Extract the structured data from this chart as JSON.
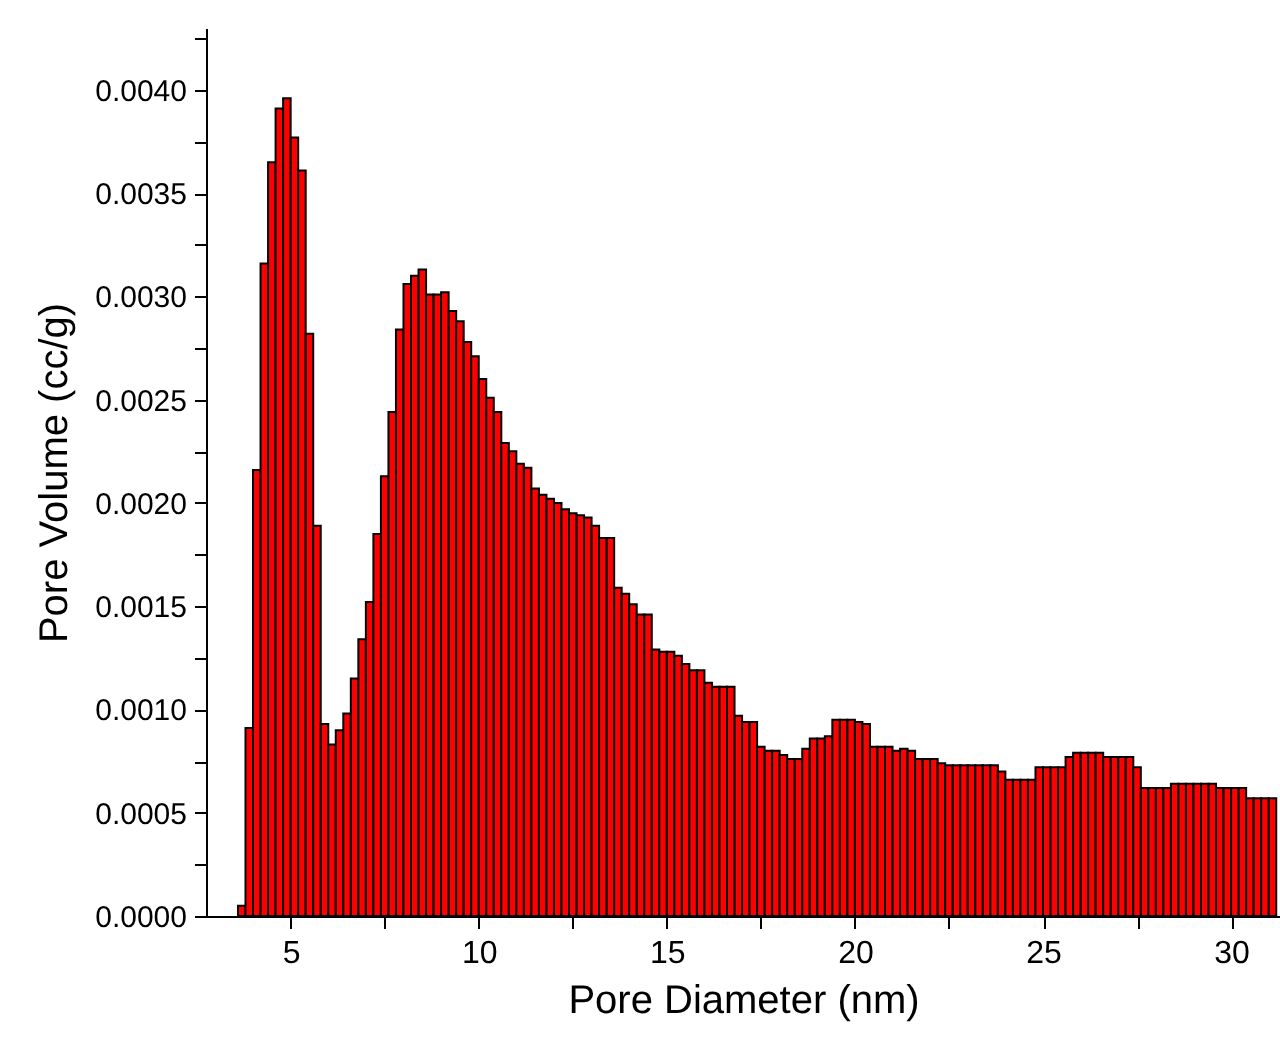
{
  "chart_data": {
    "type": "histogram",
    "xlabel": "Pore Diameter (nm)",
    "ylabel": "Pore Volume (cc/g)",
    "bins": [
      3.6,
      3.8,
      4.0,
      4.2,
      4.4,
      4.6,
      4.8,
      5.0,
      5.2,
      5.4,
      5.6,
      5.8,
      6.0,
      6.2,
      6.4,
      6.6,
      6.8,
      7.0,
      7.2,
      7.4,
      7.6,
      7.8,
      8.0,
      8.2,
      8.4,
      8.6,
      8.8,
      9.0,
      9.2,
      9.4,
      9.6,
      9.8,
      10.0,
      10.2,
      10.4,
      10.6,
      10.8,
      11.0,
      11.2,
      11.4,
      11.6,
      11.8,
      12.0,
      12.2,
      12.4,
      12.6,
      12.8,
      13.0,
      13.2,
      13.4,
      13.6,
      13.8,
      14.0,
      14.2,
      14.4,
      14.6,
      14.8,
      15.0,
      15.2,
      15.4,
      15.6,
      15.8,
      16.0,
      16.2,
      16.4,
      16.6,
      16.8,
      17.0,
      17.2,
      17.4,
      17.6,
      17.8,
      18.0,
      18.2,
      18.4,
      18.6,
      18.8,
      19.0,
      19.2,
      19.4,
      19.6,
      19.8,
      20.0,
      20.2,
      20.4,
      20.6,
      20.8,
      21.0,
      21.2,
      21.4,
      21.6,
      21.8,
      22.0,
      22.2,
      22.4,
      22.6,
      22.8,
      23.0,
      23.2,
      23.4,
      23.6,
      23.8,
      24.0,
      24.2,
      24.4,
      24.6,
      24.8,
      25.0,
      25.2,
      25.4,
      25.6,
      25.8,
      26.0,
      26.2,
      26.4,
      26.6,
      26.8,
      27.0,
      27.2,
      27.4,
      27.6,
      27.8,
      28.0,
      28.2,
      28.4,
      28.6,
      28.8,
      29.0,
      29.2,
      29.4,
      29.6,
      29.8,
      30.0,
      30.2,
      30.4,
      30.6,
      30.8,
      31.0,
      31.2
    ],
    "values": [
      5e-05,
      0.00091,
      0.00216,
      0.00316,
      0.00365,
      0.00391,
      0.00396,
      0.00377,
      0.00361,
      0.00282,
      0.00189,
      0.00093,
      0.00083,
      0.0009,
      0.00098,
      0.00115,
      0.00134,
      0.00152,
      0.00185,
      0.00213,
      0.00244,
      0.00284,
      0.00306,
      0.0031,
      0.00313,
      0.00301,
      0.00301,
      0.00302,
      0.00293,
      0.00288,
      0.00278,
      0.00271,
      0.0026,
      0.00251,
      0.00244,
      0.00229,
      0.00225,
      0.00219,
      0.00217,
      0.00207,
      0.00204,
      0.00202,
      0.002,
      0.00197,
      0.00195,
      0.00194,
      0.00193,
      0.00189,
      0.00183,
      0.00183,
      0.00159,
      0.00156,
      0.00151,
      0.00146,
      0.00146,
      0.00129,
      0.00128,
      0.00128,
      0.00126,
      0.00122,
      0.00119,
      0.00119,
      0.00113,
      0.00111,
      0.00111,
      0.00111,
      0.00097,
      0.00094,
      0.00094,
      0.00082,
      0.0008,
      0.0008,
      0.00078,
      0.00076,
      0.00076,
      0.00081,
      0.00086,
      0.00086,
      0.00087,
      0.00095,
      0.00095,
      0.00095,
      0.00094,
      0.00093,
      0.00082,
      0.00082,
      0.00082,
      0.0008,
      0.00081,
      0.0008,
      0.00076,
      0.00076,
      0.00076,
      0.00074,
      0.00073,
      0.00073,
      0.00073,
      0.00073,
      0.00073,
      0.00073,
      0.00073,
      0.0007,
      0.00066,
      0.00066,
      0.00066,
      0.00066,
      0.00072,
      0.00072,
      0.00072,
      0.00072,
      0.00077,
      0.00079,
      0.00079,
      0.00079,
      0.00079,
      0.00077,
      0.00077,
      0.00077,
      0.00077,
      0.00072,
      0.00062,
      0.00062,
      0.00062,
      0.00062,
      0.00064,
      0.00064,
      0.00064,
      0.00064,
      0.00064,
      0.00064,
      0.00062,
      0.00062,
      0.00062,
      0.00062,
      0.00057,
      0.00057,
      0.00057,
      0.00057
    ],
    "color": "#ff0000",
    "xlim": [
      2.75,
      31.3
    ],
    "xticks": [
      5,
      {
        "value": 7.5,
        "label": null
      },
      10,
      {
        "value": 12.5,
        "label": null
      },
      15,
      {
        "value": 17.5,
        "label": null
      },
      20,
      {
        "value": 22.5,
        "label": null
      },
      25,
      {
        "value": 27.5,
        "label": null
      },
      30
    ],
    "ylim": [
      0,
      0.0043
    ],
    "yticks": [
      {
        "value": 0,
        "label": "0.0000"
      },
      {
        "value": 0.00025,
        "label": null
      },
      {
        "value": 0.0005,
        "label": "0.0005"
      },
      {
        "value": 0.00075,
        "label": null
      },
      {
        "value": 0.001,
        "label": "0.0010"
      },
      {
        "value": 0.00125,
        "label": null
      },
      {
        "value": 0.0015,
        "label": "0.0015"
      },
      {
        "value": 0.00175,
        "label": null
      },
      {
        "value": 0.002,
        "label": "0.0020"
      },
      {
        "value": 0.00225,
        "label": null
      },
      {
        "value": 0.0025,
        "label": "0.0025"
      },
      {
        "value": 0.00275,
        "label": null
      },
      {
        "value": 0.003,
        "label": "0.0030"
      },
      {
        "value": 0.00325,
        "label": null
      },
      {
        "value": 0.0035,
        "label": "0.0035"
      },
      {
        "value": 0.00375,
        "label": null
      },
      {
        "value": 0.004,
        "label": "0.0040"
      },
      {
        "value": 0.00425,
        "label": null
      }
    ],
    "grid": false
  }
}
